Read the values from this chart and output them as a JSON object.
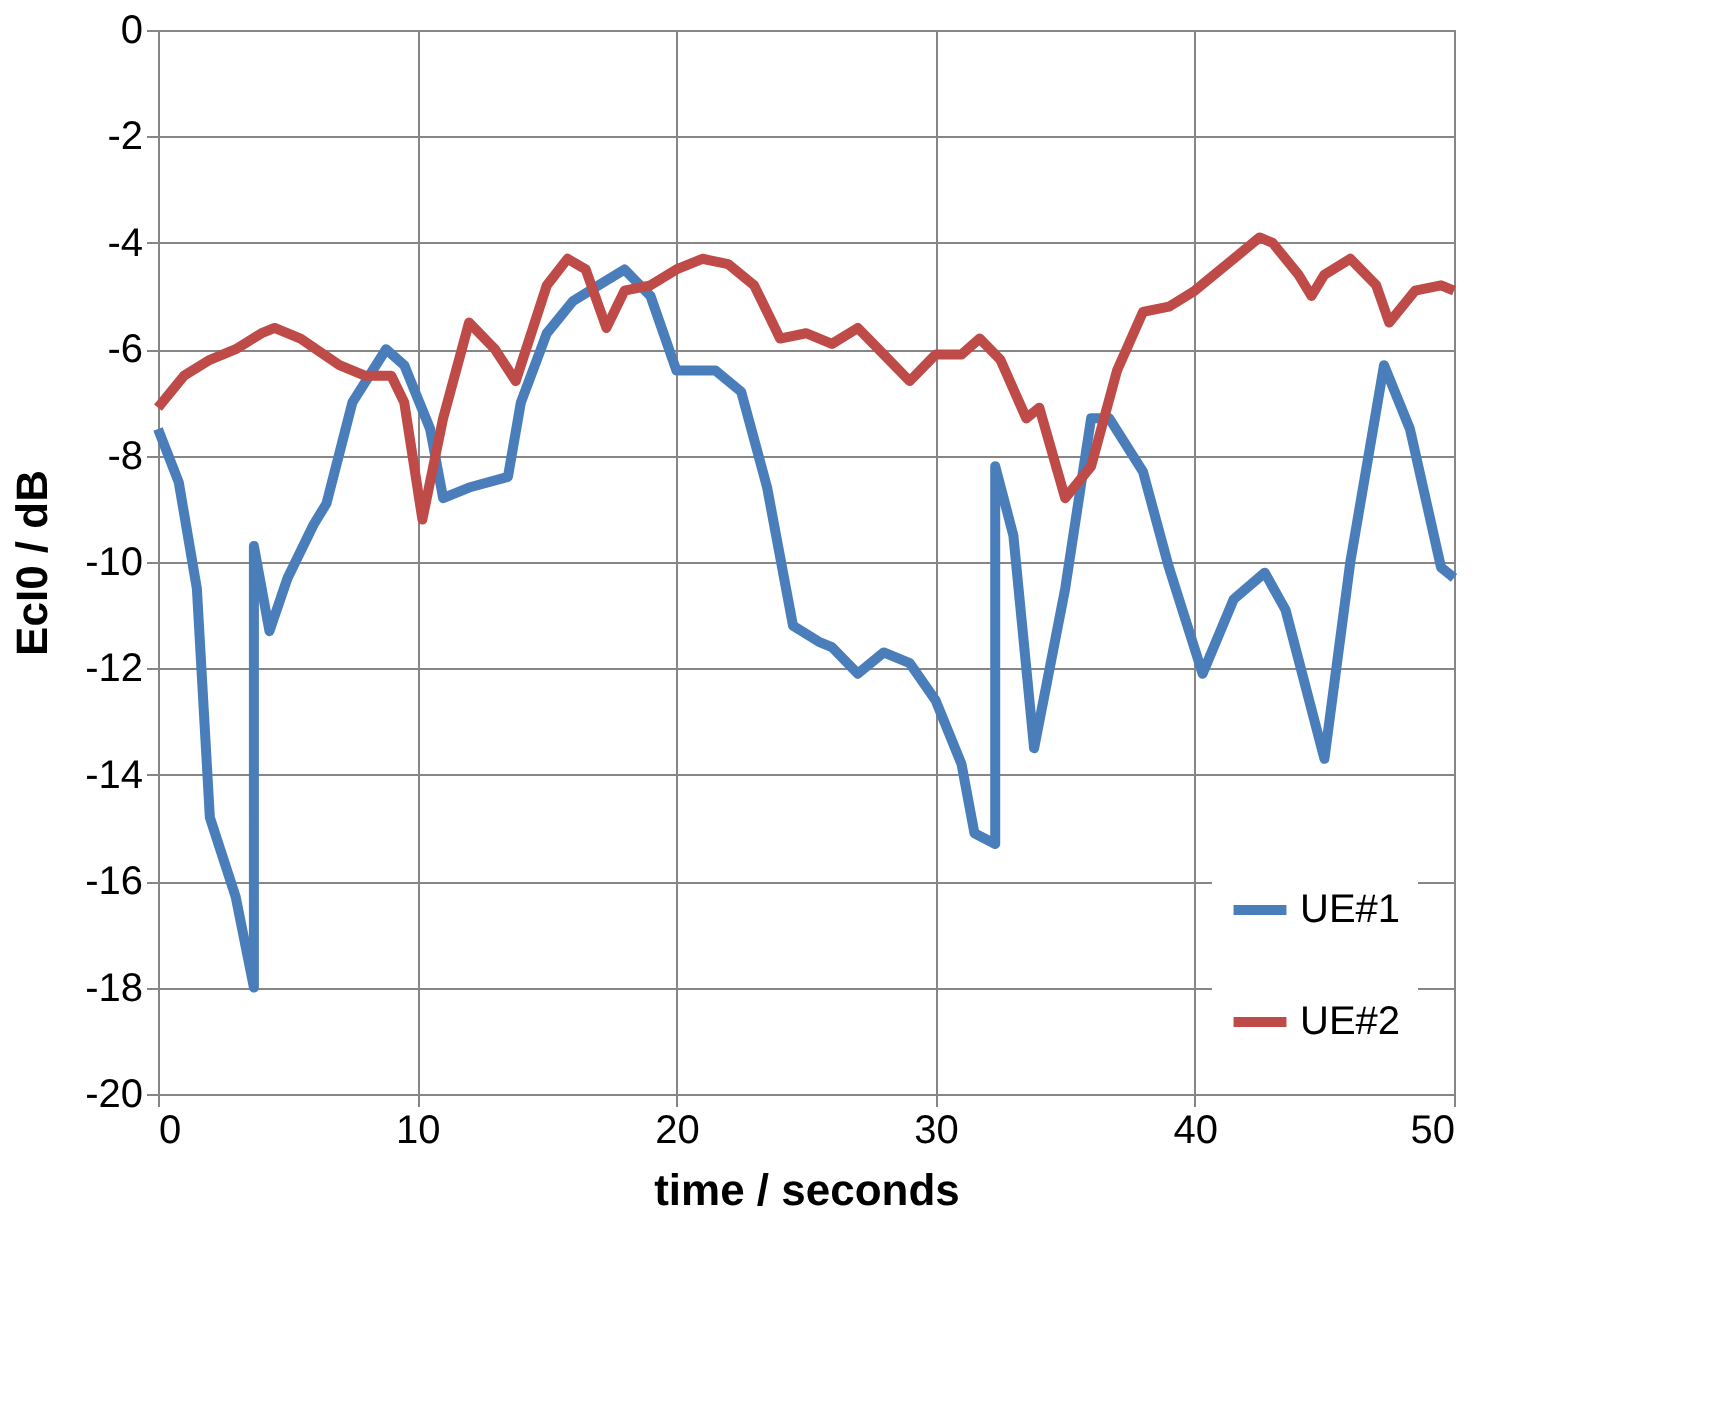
{
  "chart_data": {
    "type": "line",
    "xlabel": "time / seconds",
    "ylabel": "EcI0 / dB",
    "xlim": [
      0,
      50
    ],
    "xticks": [
      0,
      10,
      20,
      30,
      40,
      50
    ],
    "ylim": [
      -20,
      0
    ],
    "yticks": [
      -20,
      -18,
      -16,
      -14,
      -12,
      -10,
      -8,
      -6,
      -4,
      -2,
      0
    ],
    "grid": true,
    "legend": "bottom right",
    "marker": "none",
    "line_style": "solid",
    "series": [
      {
        "name": "UE#1",
        "color": "#4a7ebb",
        "x": [
          0,
          0.8,
          1.5,
          2,
          3,
          3.7,
          3.7,
          4.3,
          5,
          6,
          6.5,
          7.5,
          8.8,
          9.5,
          10.5,
          11,
          12,
          13.5,
          14,
          15,
          16,
          17,
          18,
          19,
          20,
          21.5,
          22.5,
          23.5,
          24.5,
          25.5,
          26,
          27,
          28,
          29,
          30,
          31,
          31.5,
          32.3,
          32.3,
          33,
          33.8,
          35,
          36,
          36.7,
          38,
          39,
          40.3,
          41.5,
          42.7,
          43.5,
          45,
          46,
          47.3,
          48.3,
          49.5,
          50
        ],
        "values": [
          -7.5,
          -8.5,
          -10.5,
          -14.8,
          -16.3,
          -18,
          -9.7,
          -11.3,
          -10.3,
          -9.3,
          -8.9,
          -7,
          -6,
          -6.3,
          -7.5,
          -8.8,
          -8.6,
          -8.4,
          -7,
          -5.7,
          -5.1,
          -4.8,
          -4.5,
          -5,
          -6.4,
          -6.4,
          -6.8,
          -8.6,
          -11.2,
          -11.5,
          -11.6,
          -12.1,
          -11.7,
          -11.9,
          -12.6,
          -13.8,
          -15.1,
          -15.3,
          -8.2,
          -9.5,
          -13.5,
          -10.5,
          -7.3,
          -7.3,
          -8.3,
          -10.1,
          -12.1,
          -10.7,
          -10.2,
          -10.9,
          -13.7,
          -10,
          -6.3,
          -7.5,
          -10.1,
          -10.3
        ]
      },
      {
        "name": "UE#2",
        "color": "#be4b48",
        "x": [
          0,
          1,
          2,
          3,
          4,
          4.5,
          5.5,
          7,
          8,
          9,
          9.5,
          10.2,
          11,
          12,
          13,
          13.8,
          15,
          15.8,
          16.5,
          17.3,
          18,
          19,
          20,
          21,
          22,
          23,
          24,
          25,
          26,
          27,
          28,
          29,
          30,
          31,
          31.7,
          32.5,
          33.5,
          34,
          35,
          36,
          37,
          38,
          39,
          40,
          41,
          42.5,
          43,
          44,
          44.5,
          45,
          46,
          47,
          47.5,
          48.5,
          49.5,
          50
        ],
        "values": [
          -7.1,
          -6.5,
          -6.2,
          -6,
          -5.7,
          -5.6,
          -5.8,
          -6.3,
          -6.5,
          -6.5,
          -7,
          -9.2,
          -7.3,
          -5.5,
          -6,
          -6.6,
          -4.8,
          -4.3,
          -4.5,
          -5.6,
          -4.9,
          -4.8,
          -4.5,
          -4.3,
          -4.4,
          -4.8,
          -5.8,
          -5.7,
          -5.9,
          -5.6,
          -6.1,
          -6.6,
          -6.1,
          -6.1,
          -5.8,
          -6.2,
          -7.3,
          -7.1,
          -8.8,
          -8.2,
          -6.4,
          -5.3,
          -5.2,
          -4.9,
          -4.5,
          -3.9,
          -4,
          -4.6,
          -5,
          -4.6,
          -4.3,
          -4.8,
          -5.5,
          -4.9,
          -4.8,
          -4.9
        ]
      }
    ]
  }
}
